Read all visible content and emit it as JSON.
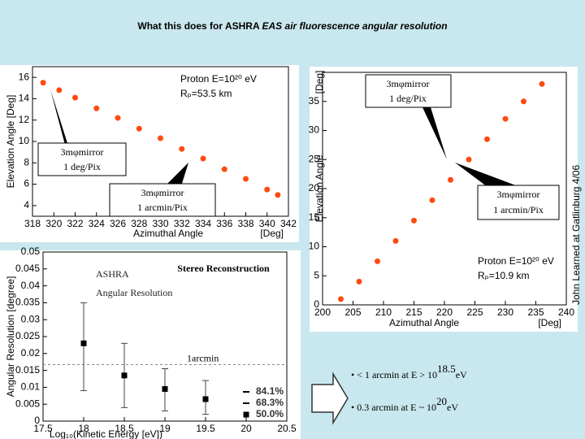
{
  "title": {
    "plain": "What this does for ASHRA ",
    "italic": "EAS air fluorescence angular resolution"
  },
  "chart_data": [
    {
      "type": "scatter",
      "annotations": [
        "Proton E=10²⁰ eV",
        "Rₚ=53.5 km"
      ],
      "y_label": "Elevation Angle [Deg]",
      "x_label": "Azimuthal Angle",
      "x_unit": "[Deg]",
      "xlim": [
        318,
        342
      ],
      "xticks": [
        318,
        320,
        322,
        324,
        326,
        328,
        330,
        332,
        334,
        336,
        338,
        340,
        342
      ],
      "ylim": [
        3,
        17
      ],
      "yticks": [
        4,
        6,
        8,
        10,
        12,
        14,
        16
      ],
      "color": "#ff4a10",
      "x": [
        319,
        320.5,
        322,
        324,
        326,
        328,
        330,
        332,
        334,
        336,
        338,
        340,
        341
      ],
      "values": [
        15.5,
        14.8,
        14.1,
        13.1,
        12.2,
        11.2,
        10.3,
        9.3,
        8.4,
        7.4,
        6.5,
        5.5,
        5
      ]
    },
    {
      "type": "scatter",
      "annotations": [
        "Proton E=10²⁰ eV",
        "Rₚ=10.9 km"
      ],
      "y_label": "Elevation Angle",
      "y_unit": "[Deg]",
      "x_label": "Azimuthal Angle",
      "x_unit": "[Deg]",
      "xlim": [
        200,
        240
      ],
      "xticks": [
        200,
        205,
        210,
        215,
        220,
        225,
        230,
        235,
        240
      ],
      "ylim": [
        0,
        40
      ],
      "yticks": [
        0,
        5,
        10,
        15,
        20,
        25,
        30,
        35
      ],
      "color": "#ff4a10",
      "x": [
        203,
        206,
        209,
        212,
        215,
        218,
        221,
        224,
        227,
        230,
        233,
        236
      ],
      "values": [
        1,
        4,
        7.5,
        11,
        14.5,
        18,
        21.5,
        25,
        28.5,
        32,
        35,
        38
      ]
    },
    {
      "type": "errorbar",
      "title": "Stereo Reconstruction",
      "y_label": "Angular Resolution [degree]",
      "x_label": "Log₁₀(Kinetic Energy [eV])",
      "xlim": [
        17.5,
        20.5
      ],
      "xticks": [
        17.5,
        18,
        18.5,
        19,
        19.5,
        20,
        20.5
      ],
      "ylim": [
        0,
        0.05
      ],
      "yticks": [
        0,
        0.005,
        0.01,
        0.015,
        0.02,
        0.025,
        0.03,
        0.035,
        0.04,
        0.045,
        0.05
      ],
      "x": [
        18,
        18.5,
        19,
        19.5
      ],
      "values": [
        0.023,
        0.0135,
        0.0095,
        0.0065
      ],
      "lower": [
        0.009,
        0.004,
        0.003,
        0.002
      ],
      "upper": [
        0.035,
        0.023,
        0.0155,
        0.012
      ],
      "reference_line": 0.0167,
      "reference_label": "1arcmin",
      "legend": [
        "84.1%",
        "68.3%",
        "50.0%"
      ]
    }
  ],
  "callouts": [
    {
      "lines": [
        "3mφmirror",
        "1 deg/Pix"
      ]
    },
    {
      "lines": [
        "3mφmirror",
        "1 arcmin/Pix"
      ]
    },
    {
      "lines": [
        "3mφmirror",
        "1 deg/Pix"
      ]
    },
    {
      "lines": [
        "3mφmirror",
        "1 arcmin/Pix"
      ]
    }
  ],
  "ashra_label": [
    "ASHRA",
    "Angular Resolution"
  ],
  "bullets": [
    {
      "text": "• < 1 arcmin at E > 10",
      "sup": "18.5",
      "tail": "eV"
    },
    {
      "text": "• 0.3 arcmin at E ~ 10",
      "sup": "20",
      "tail": "eV"
    }
  ],
  "credit": "John Learned at Gatlinburg 4/06"
}
